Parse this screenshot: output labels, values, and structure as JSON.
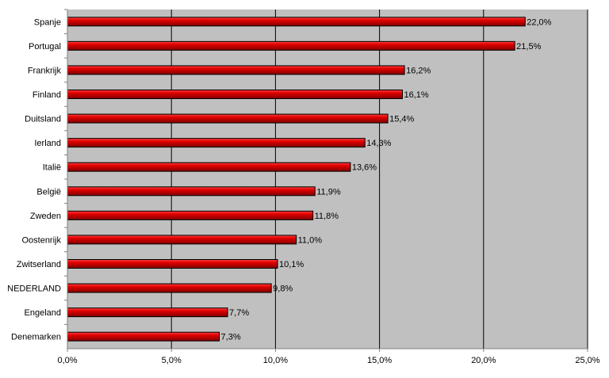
{
  "chart_data": {
    "type": "bar",
    "orientation": "horizontal",
    "title": "",
    "xlabel": "",
    "ylabel": "",
    "categories": [
      "Spanje",
      "Portugal",
      "Frankrijk",
      "Finland",
      "Duitsland",
      "Ierland",
      "Italië",
      "België",
      "Zweden",
      "Oostenrijk",
      "Zwitserland",
      "NEDERLAND",
      "Engeland",
      "Denemarken"
    ],
    "values": [
      22.0,
      21.5,
      16.2,
      16.1,
      15.4,
      14.3,
      13.6,
      11.9,
      11.8,
      11.0,
      10.1,
      9.8,
      7.7,
      7.3
    ],
    "value_labels": [
      "22,0%",
      "21,5%",
      "16,2%",
      "16,1%",
      "15,4%",
      "14,3%",
      "13,6%",
      "11,9%",
      "11,8%",
      "11,0%",
      "10,1%",
      "9,8%",
      "7,7%",
      "7,3%"
    ],
    "xlim": [
      0,
      25
    ],
    "xticks": [
      0,
      5,
      10,
      15,
      20,
      25
    ],
    "xtick_labels": [
      "0,0%",
      "5,0%",
      "10,0%",
      "15,0%",
      "20,0%",
      "25,0%"
    ],
    "grid": "vertical",
    "legend": "none",
    "colors": {
      "bar": "#e00000",
      "bar_dark": "#800000",
      "bar_light": "#ff4040",
      "plot_background": "#c0c0c0",
      "gridline": "#000000",
      "axis": "#808080"
    }
  }
}
